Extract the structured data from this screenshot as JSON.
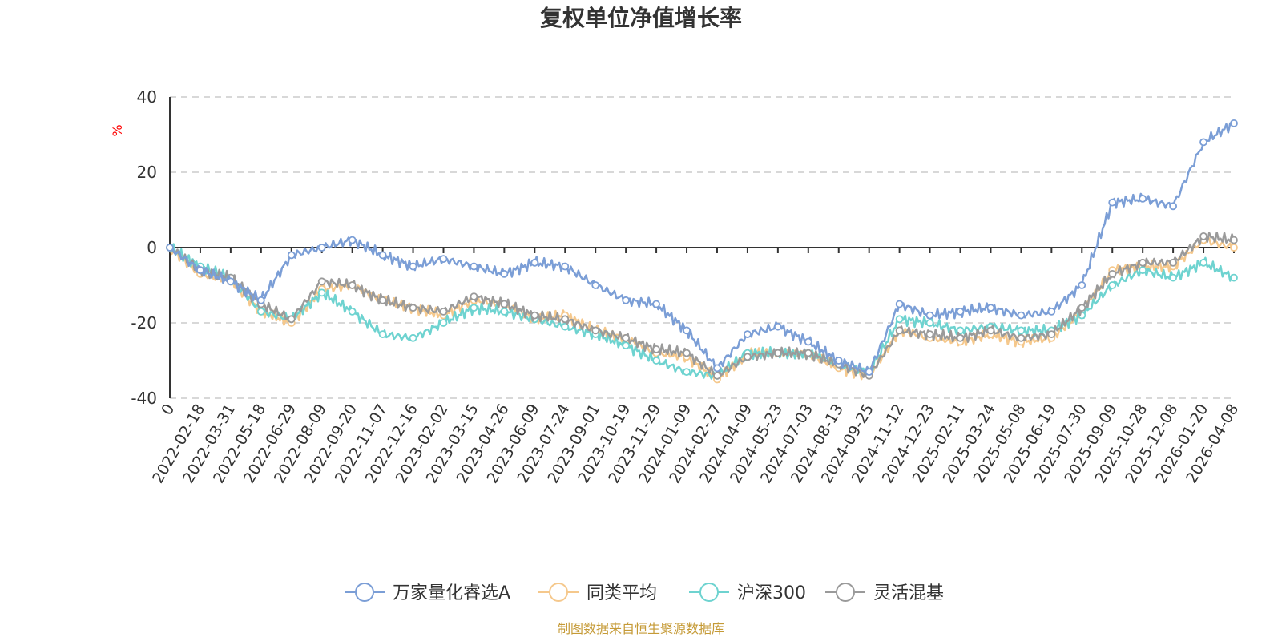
{
  "chart_data": {
    "type": "line",
    "title": "复权单位净值增长率",
    "ylabel": "%",
    "ylim": [
      -40,
      40
    ],
    "yticks": [
      "40",
      "20",
      "0",
      "-20",
      "-40"
    ],
    "grid": true,
    "legend_position": "bottom-center",
    "categories": [
      "0",
      "2022-02-18",
      "2022-03-31",
      "2022-05-18",
      "2022-06-29",
      "2022-08-09",
      "2022-09-20",
      "2022-11-07",
      "2022-12-16",
      "2023-02-02",
      "2023-03-15",
      "2023-04-26",
      "2023-06-09",
      "2023-07-24",
      "2023-09-01",
      "2023-10-19",
      "2023-11-29",
      "2024-01-09",
      "2024-02-27",
      "2024-04-09",
      "2024-05-23",
      "2024-07-03",
      "2024-08-13",
      "2024-09-25",
      "2024-11-12",
      "2024-12-23",
      "2025-02-11",
      "2025-03-24",
      "2025-05-08",
      "2025-06-19",
      "2025-07-30",
      "2025-09-09",
      "2025-10-28",
      "2025-12-08",
      "2026-01-20",
      "2026-04-08"
    ],
    "series": [
      {
        "name": "万家量化睿选A",
        "color": "#7b9ed6",
        "values": [
          0,
          -6,
          -9,
          -14,
          -2,
          0,
          2,
          -2,
          -5,
          -3,
          -5,
          -7,
          -4,
          -5,
          -10,
          -14,
          -15,
          -22,
          -32,
          -23,
          -21,
          -25,
          -30,
          -33,
          -15,
          -18,
          -17,
          -16,
          -18,
          -17,
          -10,
          12,
          13,
          11,
          28,
          33
        ]
      },
      {
        "name": "同类平均",
        "color": "#f5c88c",
        "values": [
          0,
          -7,
          -9,
          -17,
          -20,
          -11,
          -10,
          -14,
          -16,
          -18,
          -14,
          -15,
          -19,
          -18,
          -22,
          -24,
          -28,
          -29,
          -35,
          -28,
          -28,
          -28,
          -32,
          -34,
          -22,
          -24,
          -25,
          -23,
          -25,
          -24,
          -17,
          -6,
          -5,
          -5,
          2,
          0
        ]
      },
      {
        "name": "沪深300",
        "color": "#6ed3d0",
        "values": [
          0,
          -5,
          -8,
          -17,
          -19,
          -12,
          -17,
          -23,
          -24,
          -20,
          -16,
          -17,
          -19,
          -21,
          -23,
          -26,
          -30,
          -33,
          -34,
          -28,
          -28,
          -28,
          -31,
          -33,
          -19,
          -20,
          -22,
          -21,
          -22,
          -22,
          -18,
          -10,
          -6,
          -8,
          -4,
          -8
        ]
      },
      {
        "name": "灵活混基",
        "color": "#9a9a9a",
        "values": [
          0,
          -6,
          -8,
          -15,
          -19,
          -9,
          -10,
          -14,
          -16,
          -17,
          -13,
          -15,
          -18,
          -19,
          -22,
          -24,
          -27,
          -28,
          -34,
          -29,
          -28,
          -28,
          -31,
          -34,
          -22,
          -23,
          -24,
          -22,
          -24,
          -23,
          -16,
          -7,
          -4,
          -4,
          3,
          2
        ]
      }
    ]
  },
  "legend": {
    "items": [
      "万家量化睿选A",
      "同类平均",
      "沪深300",
      "灵活混基"
    ]
  },
  "footer": {
    "source": "制图数据来自恒生聚源数据库"
  }
}
